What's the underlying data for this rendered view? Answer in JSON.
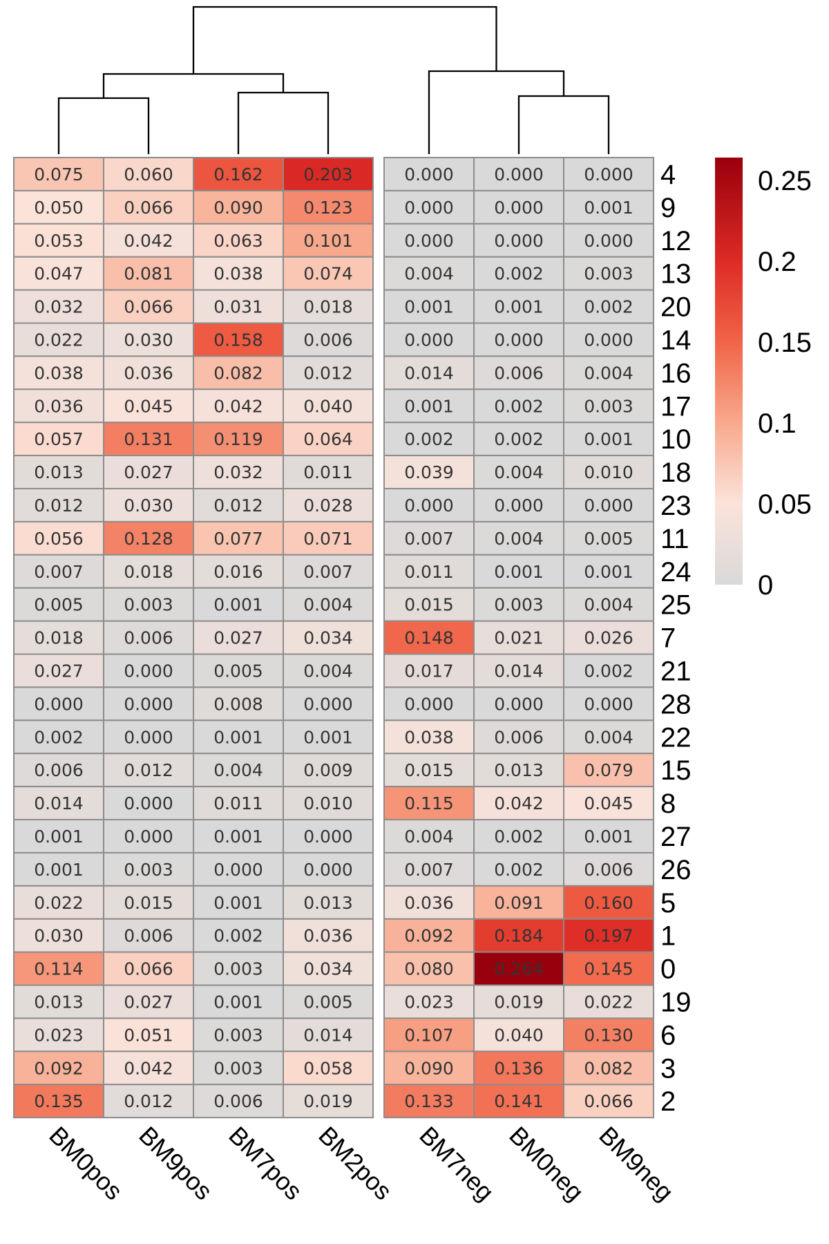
{
  "chart_data": {
    "type": "heatmap",
    "title": "",
    "columns": [
      "BM0pos",
      "BM9pos",
      "BM7pos",
      "BM2pos",
      "BM7neg",
      "BM0neg",
      "BM9neg"
    ],
    "column_gap_after": 4,
    "rows": [
      "4",
      "9",
      "12",
      "13",
      "20",
      "14",
      "16",
      "17",
      "10",
      "18",
      "23",
      "11",
      "24",
      "25",
      "7",
      "21",
      "28",
      "22",
      "15",
      "8",
      "27",
      "26",
      "5",
      "1",
      "0",
      "19",
      "6",
      "3",
      "2"
    ],
    "values": [
      [
        0.075,
        0.06,
        0.162,
        0.203,
        0.0,
        0.0,
        0.0
      ],
      [
        0.05,
        0.066,
        0.09,
        0.123,
        0.0,
        0.0,
        0.001
      ],
      [
        0.053,
        0.042,
        0.063,
        0.101,
        0.0,
        0.0,
        0.0
      ],
      [
        0.047,
        0.081,
        0.038,
        0.074,
        0.004,
        0.002,
        0.003
      ],
      [
        0.032,
        0.066,
        0.031,
        0.018,
        0.001,
        0.001,
        0.002
      ],
      [
        0.022,
        0.03,
        0.158,
        0.006,
        0.0,
        0.0,
        0.0
      ],
      [
        0.038,
        0.036,
        0.082,
        0.012,
        0.014,
        0.006,
        0.004
      ],
      [
        0.036,
        0.045,
        0.042,
        0.04,
        0.001,
        0.002,
        0.003
      ],
      [
        0.057,
        0.131,
        0.119,
        0.064,
        0.002,
        0.002,
        0.001
      ],
      [
        0.013,
        0.027,
        0.032,
        0.011,
        0.039,
        0.004,
        0.01
      ],
      [
        0.012,
        0.03,
        0.012,
        0.028,
        0.0,
        0.0,
        0.0
      ],
      [
        0.056,
        0.128,
        0.077,
        0.071,
        0.007,
        0.004,
        0.005
      ],
      [
        0.007,
        0.018,
        0.016,
        0.007,
        0.011,
        0.001,
        0.001
      ],
      [
        0.005,
        0.003,
        0.001,
        0.004,
        0.015,
        0.003,
        0.004
      ],
      [
        0.018,
        0.006,
        0.027,
        0.034,
        0.148,
        0.021,
        0.026
      ],
      [
        0.027,
        0.0,
        0.005,
        0.004,
        0.017,
        0.014,
        0.002
      ],
      [
        0.0,
        0.0,
        0.008,
        0.0,
        0.0,
        0.0,
        0.0
      ],
      [
        0.002,
        0.0,
        0.001,
        0.001,
        0.038,
        0.006,
        0.004
      ],
      [
        0.006,
        0.012,
        0.004,
        0.009,
        0.015,
        0.013,
        0.079
      ],
      [
        0.014,
        0.0,
        0.011,
        0.01,
        0.115,
        0.042,
        0.045
      ],
      [
        0.001,
        0.0,
        0.001,
        0.0,
        0.004,
        0.002,
        0.001
      ],
      [
        0.001,
        0.003,
        0.0,
        0.0,
        0.007,
        0.002,
        0.006
      ],
      [
        0.022,
        0.015,
        0.001,
        0.013,
        0.036,
        0.091,
        0.16
      ],
      [
        0.03,
        0.006,
        0.002,
        0.036,
        0.092,
        0.184,
        0.197
      ],
      [
        0.114,
        0.066,
        0.003,
        0.034,
        0.08,
        0.264,
        0.145
      ],
      [
        0.013,
        0.027,
        0.001,
        0.005,
        0.023,
        0.019,
        0.022
      ],
      [
        0.023,
        0.051,
        0.003,
        0.014,
        0.107,
        0.04,
        0.13
      ],
      [
        0.092,
        0.042,
        0.003,
        0.058,
        0.09,
        0.136,
        0.082
      ],
      [
        0.135,
        0.012,
        0.006,
        0.019,
        0.133,
        0.141,
        0.066
      ]
    ],
    "color_scale": {
      "min": 0,
      "max": 0.264,
      "stops": [
        {
          "value": 0,
          "color": "#d9d9d9"
        },
        {
          "value": 0.05,
          "color": "#fbe3da"
        },
        {
          "value": 0.1,
          "color": "#f8a98d"
        },
        {
          "value": 0.15,
          "color": "#f16448"
        },
        {
          "value": 0.2,
          "color": "#dd2b25"
        },
        {
          "value": 0.264,
          "color": "#99000d"
        }
      ],
      "legend_ticks": [
        0,
        0.05,
        0.1,
        0.15,
        0.2,
        0.25
      ],
      "legend_tick_labels": [
        "0",
        "0.05",
        "0.1",
        "0.15",
        "0.2",
        "0.25"
      ],
      "legend_placement": "right"
    },
    "column_dendrogram": true,
    "cell_border_color": "#8c8c8c",
    "value_text_color": "#333333"
  }
}
